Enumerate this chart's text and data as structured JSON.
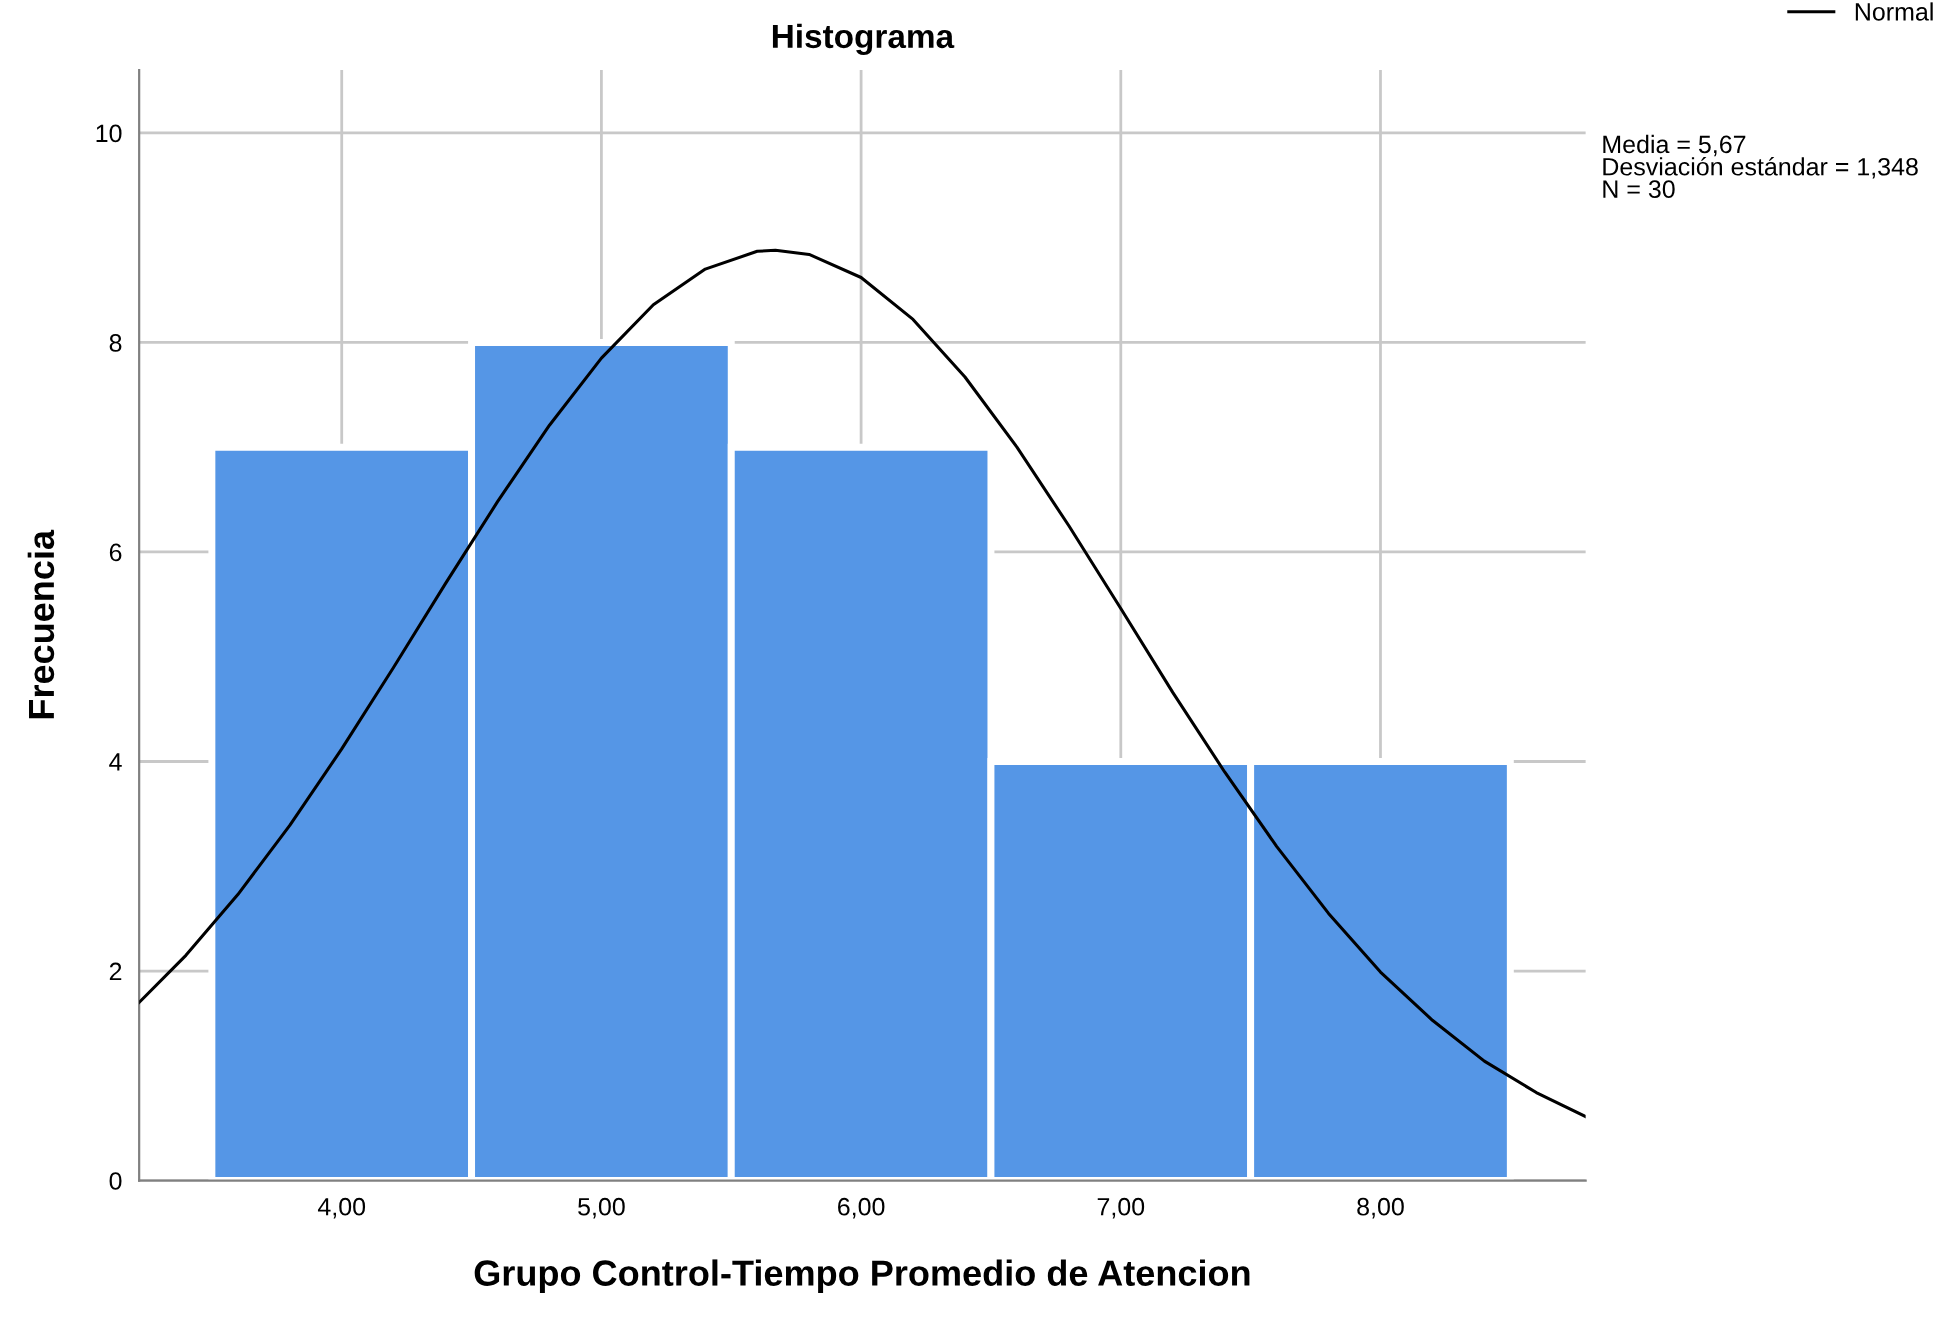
{
  "chart_data": {
    "type": "histogram",
    "title": "Histograma",
    "xlabel": "Grupo Control-Tiempo Promedio de Atencion",
    "ylabel": "Frecuencia",
    "bins": [
      3.5,
      4.5,
      5.5,
      6.5,
      7.5,
      8.5
    ],
    "values": [
      7,
      8,
      7,
      4,
      4
    ],
    "color": "#5596e6",
    "series": [
      {
        "name": "Normal",
        "type": "line",
        "color": "#000000",
        "x": [
          3.22,
          3.4,
          3.6,
          3.8,
          4.0,
          4.2,
          4.4,
          4.6,
          4.8,
          5.0,
          5.2,
          5.4,
          5.6,
          5.67,
          5.8,
          6.0,
          6.2,
          6.4,
          6.6,
          6.8,
          7.0,
          7.2,
          7.4,
          7.6,
          7.8,
          8.0,
          8.2,
          8.4,
          8.6,
          8.79
        ],
        "values": [
          1.7,
          2.15,
          2.73,
          3.39,
          4.12,
          4.9,
          5.7,
          6.48,
          7.21,
          7.85,
          8.36,
          8.7,
          8.87,
          8.88,
          8.84,
          8.62,
          8.22,
          7.67,
          7.0,
          6.25,
          5.46,
          4.66,
          3.9,
          3.19,
          2.55,
          1.99,
          1.53,
          1.14,
          0.84,
          0.61
        ]
      }
    ],
    "xlim": [
      3.22,
      8.79
    ],
    "ylim": [
      0,
      10.6
    ],
    "xticks": [
      {
        "value": 4,
        "label": "4,00"
      },
      {
        "value": 5,
        "label": "5,00"
      },
      {
        "value": 6,
        "label": "6,00"
      },
      {
        "value": 7,
        "label": "7,00"
      },
      {
        "value": 8,
        "label": "8,00"
      }
    ],
    "yticks": [
      0,
      2,
      4,
      6,
      8,
      10
    ],
    "grid": true,
    "legend": "top right",
    "marker": "none",
    "line_style": "solid",
    "annotations": [
      "Media = 5,67\nDesviación estándar = 1,348\nN = 30"
    ]
  }
}
